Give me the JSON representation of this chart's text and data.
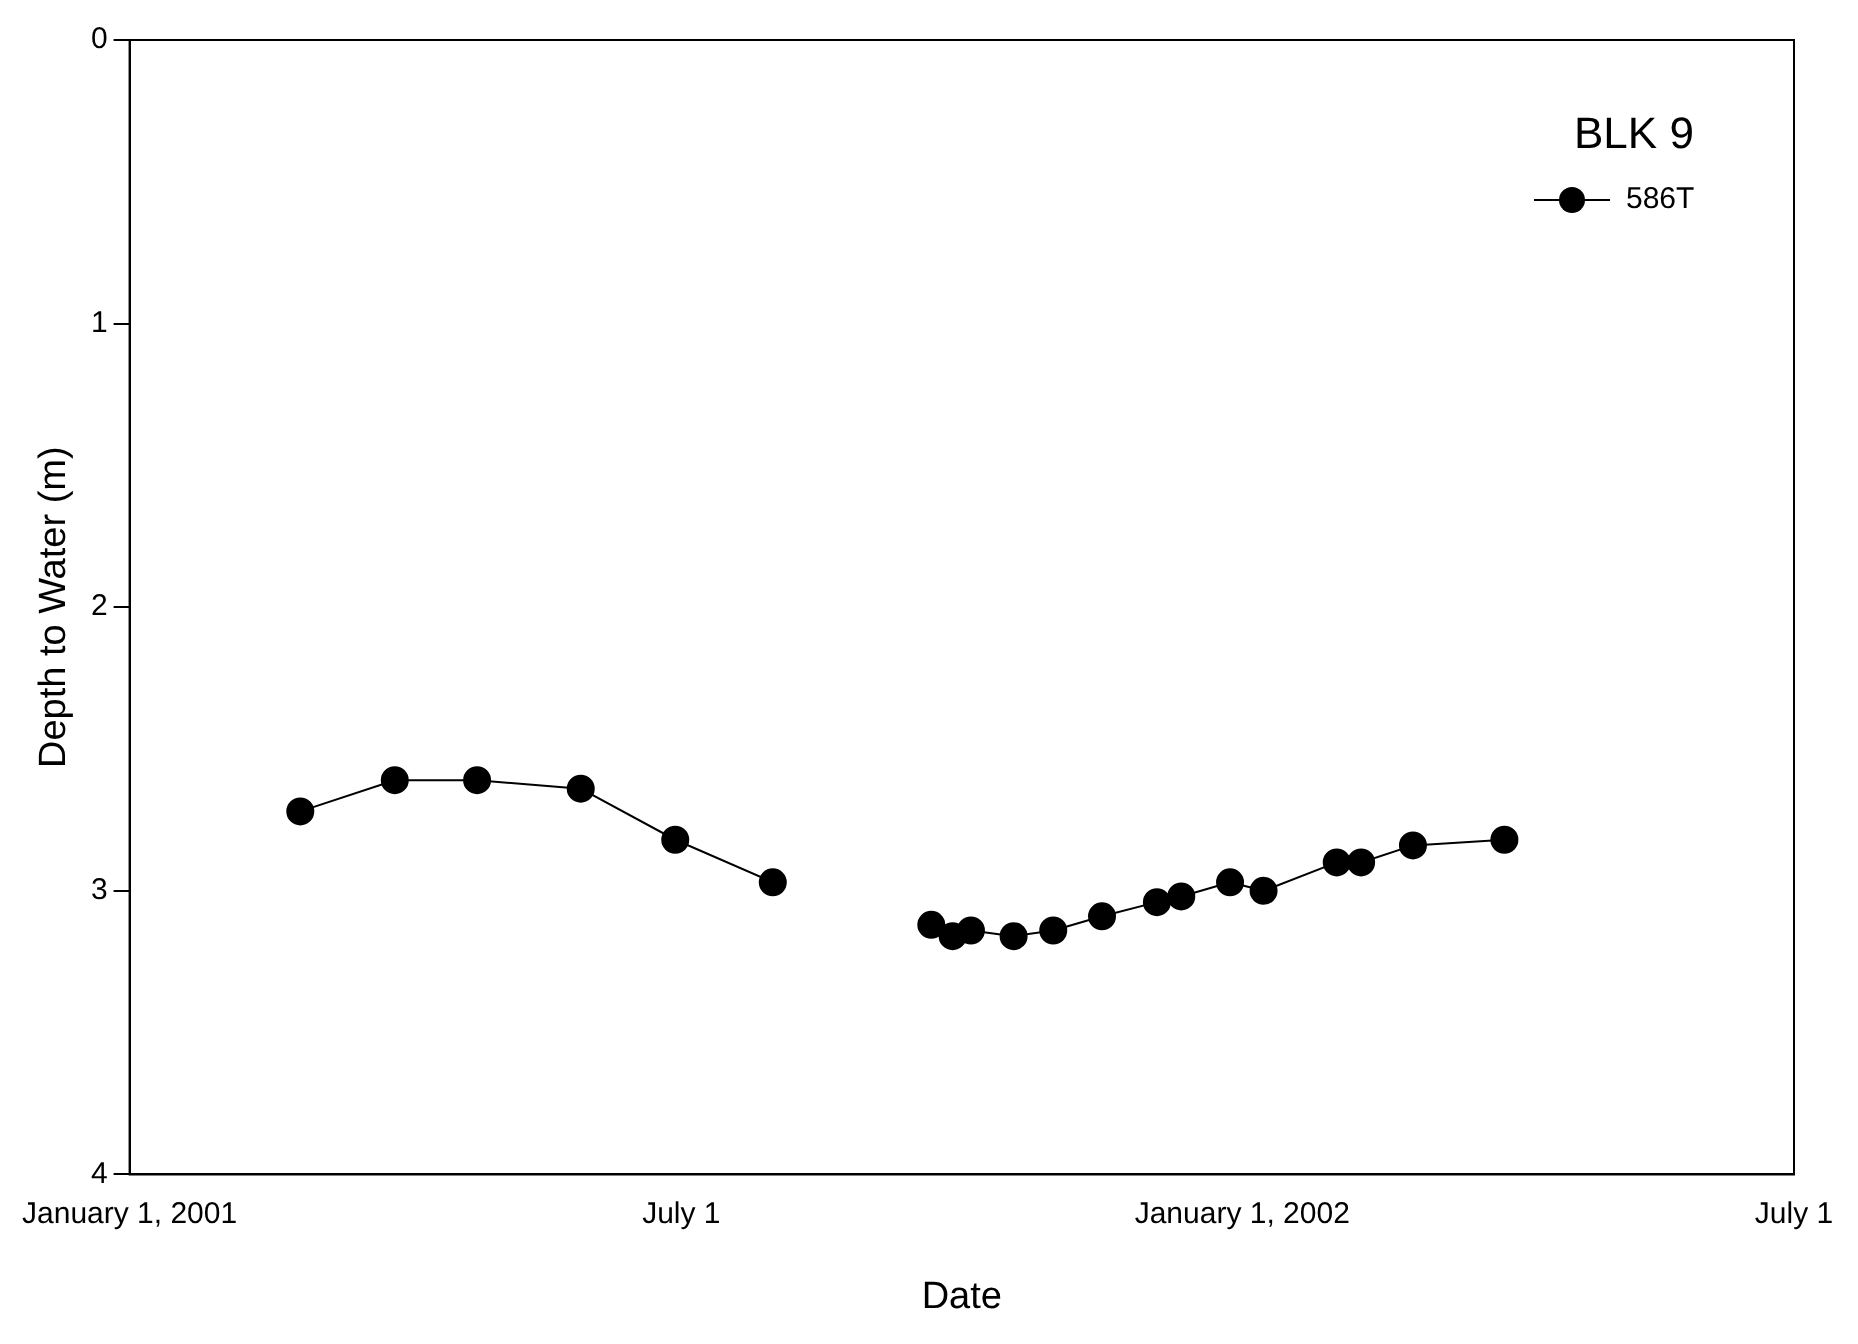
{
  "chart_data": {
    "type": "line",
    "xlabel": "Date",
    "ylabel": "Depth to Water (m)",
    "legend_title": "BLK 9",
    "legend": "top right",
    "marker": "circle",
    "line_style": "solid",
    "grid": false,
    "xlim": [
      "2001-01-01",
      "2002-07-01"
    ],
    "xticks": [
      {
        "value": "2001-01-01",
        "label": "January 1, 2001"
      },
      {
        "value": "2001-07-01",
        "label": "July 1"
      },
      {
        "value": "2002-01-01",
        "label": "January 1, 2002"
      },
      {
        "value": "2002-07-01",
        "label": "July 1"
      }
    ],
    "ylim": [
      4,
      0
    ],
    "yticks": [
      0,
      1,
      2,
      3,
      4
    ],
    "series": [
      {
        "name": "586T",
        "color": "#000000",
        "x": [
          "2001-02-26",
          "2001-03-29",
          "2001-04-25",
          "2001-05-29",
          "2001-06-29",
          "2001-07-31",
          "2001-08-31",
          "2001-09-21",
          "2001-09-28",
          "2001-10-04",
          "2001-10-18",
          "2001-10-31",
          "2001-11-16",
          "2001-12-04",
          "2001-12-12",
          "2001-12-28",
          "2002-01-08",
          "2002-02-01",
          "2002-02-09",
          "2002-02-26",
          "2002-03-28"
        ],
        "values": [
          2.72,
          2.61,
          2.61,
          2.64,
          2.82,
          2.97,
          null,
          3.12,
          3.16,
          3.14,
          3.16,
          3.14,
          3.09,
          3.04,
          3.02,
          2.97,
          3.0,
          2.9,
          2.9,
          2.84,
          2.82
        ]
      }
    ]
  }
}
